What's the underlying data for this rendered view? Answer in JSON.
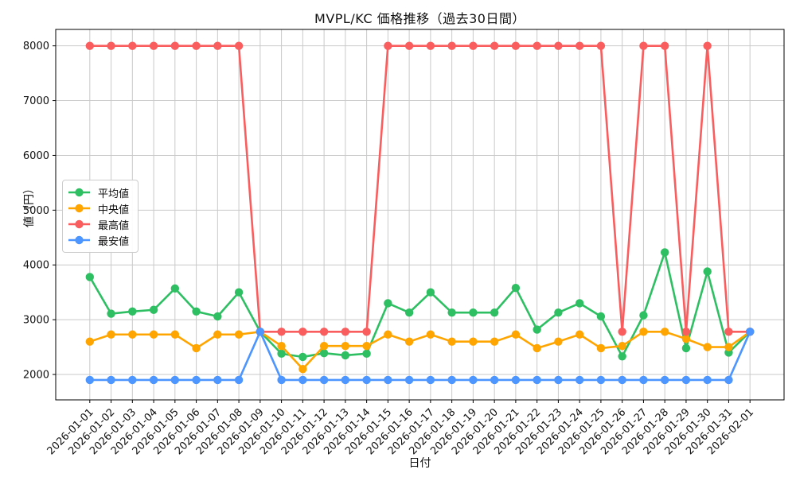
{
  "chart_data": {
    "type": "line",
    "title": "MVPL/KC 価格推移（過去30日間）",
    "xlabel": "日付",
    "ylabel": "値（円）",
    "x": [
      "2026-01-01",
      "2026-01-02",
      "2026-01-03",
      "2026-01-04",
      "2026-01-05",
      "2026-01-06",
      "2026-01-07",
      "2026-01-08",
      "2026-01-09",
      "2026-01-10",
      "2026-01-11",
      "2026-01-12",
      "2026-01-13",
      "2026-01-14",
      "2026-01-15",
      "2026-01-16",
      "2026-01-17",
      "2026-01-18",
      "2026-01-19",
      "2026-01-20",
      "2026-01-21",
      "2026-01-22",
      "2026-01-23",
      "2026-01-24",
      "2026-01-25",
      "2026-01-26",
      "2026-01-27",
      "2026-01-28",
      "2026-01-29",
      "2026-01-30",
      "2026-01-31",
      "2026-02-01"
    ],
    "series": [
      {
        "id": "avg",
        "name": "平均値",
        "color": "#2fbf63",
        "values": [
          3780,
          3110,
          3150,
          3180,
          3570,
          3150,
          3060,
          3500,
          2780,
          2380,
          2320,
          2390,
          2350,
          2380,
          3300,
          3130,
          3500,
          3130,
          3130,
          3130,
          3580,
          2820,
          3130,
          3300,
          3060,
          2330,
          3080,
          4230,
          2480,
          3880,
          2400,
          2780
        ]
      },
      {
        "id": "median",
        "name": "中央値",
        "color": "#ffa502",
        "values": [
          2600,
          2730,
          2730,
          2730,
          2730,
          2480,
          2730,
          2730,
          2780,
          2520,
          2100,
          2520,
          2520,
          2520,
          2730,
          2600,
          2730,
          2600,
          2600,
          2600,
          2730,
          2480,
          2600,
          2730,
          2480,
          2520,
          2780,
          2780,
          2650,
          2500,
          2500,
          2780
        ]
      },
      {
        "id": "max",
        "name": "最高値",
        "color": "#f95d5d",
        "values": [
          8000,
          8000,
          8000,
          8000,
          8000,
          8000,
          8000,
          8000,
          2780,
          2780,
          2780,
          2780,
          2780,
          2780,
          8000,
          8000,
          8000,
          8000,
          8000,
          8000,
          8000,
          8000,
          8000,
          8000,
          8000,
          2780,
          8000,
          8000,
          2780,
          8000,
          2780,
          2780
        ]
      },
      {
        "id": "min",
        "name": "最安値",
        "color": "#4d96ff",
        "values": [
          1900,
          1900,
          1900,
          1900,
          1900,
          1900,
          1900,
          1900,
          2780,
          1900,
          1900,
          1900,
          1900,
          1900,
          1900,
          1900,
          1900,
          1900,
          1900,
          1900,
          1900,
          1900,
          1900,
          1900,
          1900,
          1900,
          1900,
          1900,
          1900,
          1900,
          1900,
          2780
        ]
      }
    ],
    "yticks": [
      2000,
      3000,
      4000,
      5000,
      6000,
      7000,
      8000
    ],
    "ylim": [
      1536,
      8300
    ],
    "xlim_index": [
      -1.6,
      32.6
    ],
    "grid": true,
    "grid_color": "#c9c9c9",
    "axis_color": "#000000",
    "background": "#ffffff",
    "legend_position": "upper left inside",
    "x_tick_rotation_deg": 45
  }
}
